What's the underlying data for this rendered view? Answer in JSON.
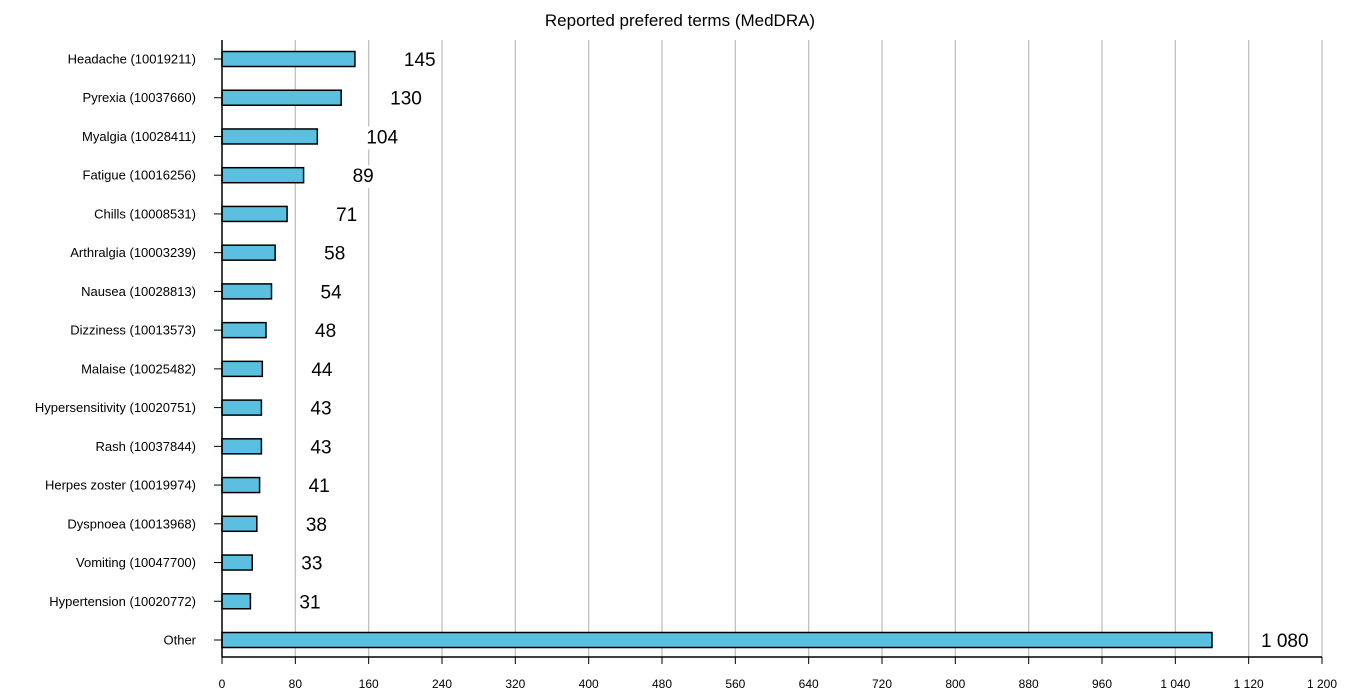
{
  "chart_data": {
    "type": "bar",
    "orientation": "horizontal",
    "title": "Reported prefered terms (MedDRA)",
    "xlabel": "",
    "ylabel": "",
    "categories": [
      "Headache (10019211)",
      "Pyrexia (10037660)",
      "Myalgia (10028411)",
      "Fatigue (10016256)",
      "Chills (10008531)",
      "Arthralgia (10003239)",
      "Nausea (10028813)",
      "Dizziness (10013573)",
      "Malaise (10025482)",
      "Hypersensitivity (10020751)",
      "Rash (10037844)",
      "Herpes zoster (10019974)",
      "Dyspnoea (10013968)",
      "Vomiting (10047700)",
      "Hypertension (10020772)",
      "Other"
    ],
    "values": [
      145,
      130,
      104,
      89,
      71,
      58,
      54,
      48,
      44,
      43,
      43,
      41,
      38,
      33,
      31,
      1080
    ],
    "value_labels": [
      "145",
      "130",
      "104",
      "89",
      "71",
      "58",
      "54",
      "48",
      "44",
      "43",
      "43",
      "41",
      "38",
      "33",
      "31",
      "1 080"
    ],
    "xlim": [
      0,
      1200
    ],
    "x_ticks": [
      0,
      80,
      160,
      240,
      320,
      400,
      480,
      560,
      640,
      720,
      800,
      880,
      960,
      1040,
      1120,
      1200
    ],
    "x_tick_labels": [
      "0",
      "80",
      "160",
      "240",
      "320",
      "400",
      "480",
      "560",
      "640",
      "720",
      "800",
      "880",
      "960",
      "1 040",
      "1 120",
      "1 200"
    ],
    "grid": "vertical",
    "legend": "none",
    "colors": {
      "bar": "#5bc0e0",
      "bar_edge": "#000000",
      "grid": "#c0c0c0",
      "axis": "#000000"
    }
  }
}
